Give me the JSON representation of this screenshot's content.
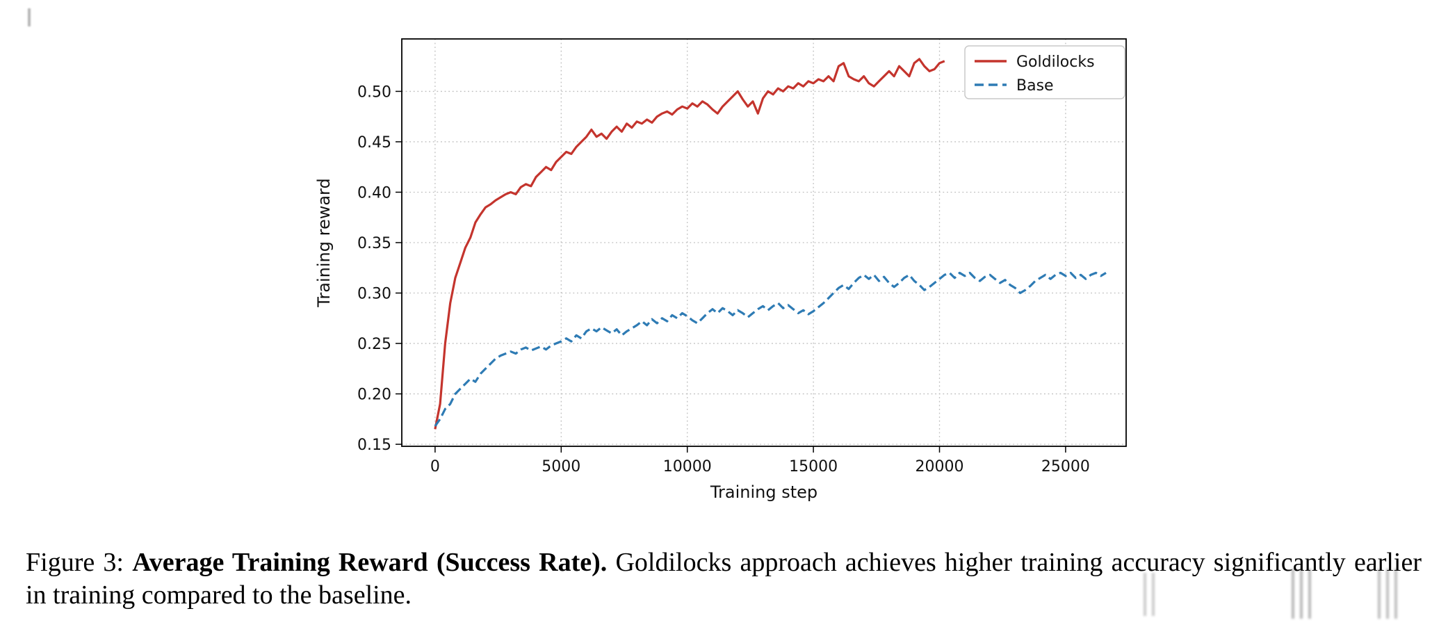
{
  "caption": {
    "label": "Figure 3: ",
    "title": "Average Training Reward (Success Rate).",
    "body": " Goldilocks approach achieves higher training accuracy significantly earlier in training compared to the baseline."
  },
  "chart_data": {
    "type": "line",
    "title": "",
    "xlabel": "Training step",
    "ylabel": "Training reward",
    "xlim": [
      -1320,
      27400
    ],
    "ylim": [
      0.148,
      0.552
    ],
    "xticks": [
      0,
      5000,
      10000,
      15000,
      20000,
      25000
    ],
    "yticks": [
      0.15,
      0.2,
      0.25,
      0.3,
      0.35,
      0.4,
      0.45,
      0.5
    ],
    "grid": "dotted",
    "grid_color": "#bdbdbd",
    "axis_color": "#000000",
    "legend_position": "upper right",
    "x_step": 200,
    "series": [
      {
        "name": "Goldilocks",
        "color": "#c4342d",
        "style": "solid",
        "x_start": 0,
        "values": [
          0.165,
          0.19,
          0.25,
          0.29,
          0.315,
          0.33,
          0.345,
          0.355,
          0.37,
          0.378,
          0.385,
          0.388,
          0.392,
          0.395,
          0.398,
          0.4,
          0.398,
          0.405,
          0.408,
          0.406,
          0.415,
          0.42,
          0.425,
          0.422,
          0.43,
          0.435,
          0.44,
          0.438,
          0.445,
          0.45,
          0.455,
          0.462,
          0.455,
          0.458,
          0.453,
          0.46,
          0.465,
          0.46,
          0.468,
          0.464,
          0.47,
          0.468,
          0.472,
          0.469,
          0.475,
          0.478,
          0.48,
          0.477,
          0.482,
          0.485,
          0.483,
          0.488,
          0.485,
          0.49,
          0.487,
          0.482,
          0.478,
          0.485,
          0.49,
          0.495,
          0.5,
          0.492,
          0.485,
          0.49,
          0.478,
          0.493,
          0.5,
          0.497,
          0.503,
          0.5,
          0.505,
          0.503,
          0.508,
          0.505,
          0.51,
          0.508,
          0.512,
          0.51,
          0.515,
          0.51,
          0.525,
          0.528,
          0.515,
          0.512,
          0.51,
          0.515,
          0.508,
          0.505,
          0.51,
          0.515,
          0.52,
          0.515,
          0.525,
          0.52,
          0.515,
          0.528,
          0.532,
          0.525,
          0.52,
          0.522,
          0.528,
          0.53
        ]
      },
      {
        "name": "Base",
        "color": "#2e7bb4",
        "style": "dashed",
        "x_start": 0,
        "values": [
          0.168,
          0.175,
          0.185,
          0.19,
          0.2,
          0.205,
          0.21,
          0.215,
          0.212,
          0.22,
          0.225,
          0.23,
          0.235,
          0.238,
          0.24,
          0.242,
          0.24,
          0.244,
          0.246,
          0.243,
          0.245,
          0.247,
          0.244,
          0.248,
          0.25,
          0.252,
          0.255,
          0.252,
          0.258,
          0.255,
          0.262,
          0.265,
          0.262,
          0.266,
          0.263,
          0.26,
          0.264,
          0.258,
          0.262,
          0.265,
          0.268,
          0.272,
          0.268,
          0.274,
          0.27,
          0.275,
          0.272,
          0.278,
          0.275,
          0.28,
          0.277,
          0.273,
          0.27,
          0.275,
          0.28,
          0.284,
          0.28,
          0.285,
          0.282,
          0.278,
          0.283,
          0.28,
          0.276,
          0.28,
          0.284,
          0.287,
          0.283,
          0.287,
          0.29,
          0.285,
          0.288,
          0.284,
          0.28,
          0.283,
          0.279,
          0.282,
          0.286,
          0.29,
          0.295,
          0.3,
          0.305,
          0.308,
          0.304,
          0.31,
          0.315,
          0.318,
          0.314,
          0.318,
          0.312,
          0.316,
          0.31,
          0.306,
          0.31,
          0.315,
          0.318,
          0.312,
          0.308,
          0.303,
          0.306,
          0.31,
          0.314,
          0.318,
          0.32,
          0.315,
          0.32,
          0.317,
          0.32,
          0.315,
          0.312,
          0.316,
          0.318,
          0.314,
          0.31,
          0.313,
          0.308,
          0.305,
          0.3,
          0.303,
          0.307,
          0.312,
          0.315,
          0.318,
          0.314,
          0.318,
          0.32,
          0.317,
          0.32,
          0.315,
          0.318,
          0.314,
          0.318,
          0.32,
          0.317,
          0.32
        ]
      }
    ]
  }
}
